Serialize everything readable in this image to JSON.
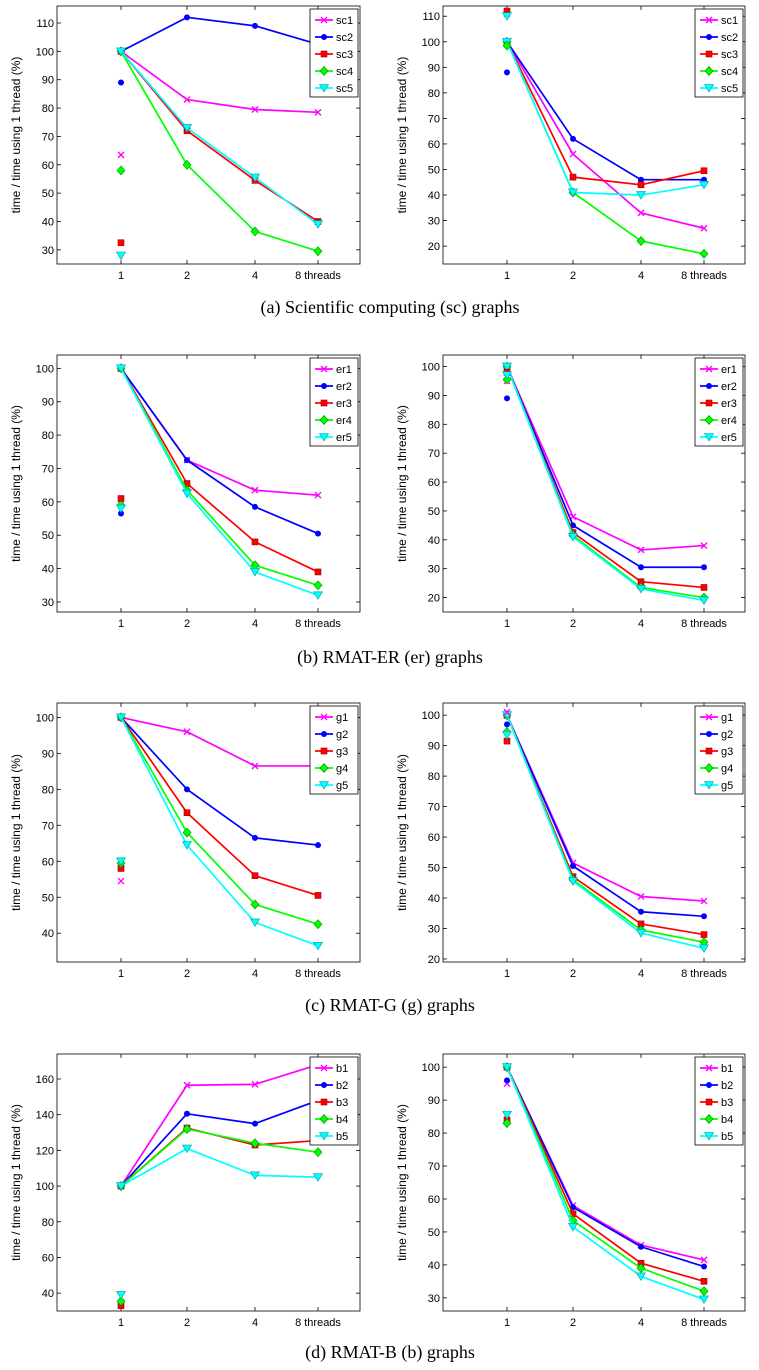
{
  "colors": {
    "pink": "#ff00ff",
    "blue": "#0000ff",
    "red": "#ff0000",
    "green": "#00ff00",
    "cyan": "#00ffff"
  },
  "series_styles": [
    {
      "color": "#ff00ff",
      "marker": "x"
    },
    {
      "color": "#0000ff",
      "marker": "dot"
    },
    {
      "color": "#ff0000",
      "marker": "square"
    },
    {
      "color": "#00ff00",
      "marker": "diamond"
    },
    {
      "color": "#00ffff",
      "marker": "triangle-down"
    }
  ],
  "captions": [
    "(a)  Scientific computing (sc) graphs",
    "(b)  RMAT-ER (er) graphs",
    "(c)  RMAT-G (g) graphs",
    "(d)  RMAT-B (b) graphs"
  ],
  "chart_data": [
    {
      "type": "line",
      "group": "a",
      "position": "left",
      "ylabel": "time / time using 1 thread (%)",
      "categories": [
        "1",
        "2",
        "4",
        "8 threads"
      ],
      "ylim": [
        25,
        116
      ],
      "yticks": [
        30,
        40,
        50,
        60,
        70,
        80,
        90,
        100,
        110
      ],
      "legend": "top-right",
      "grid": false,
      "series": [
        {
          "name": "sc1",
          "values": [
            100,
            83,
            79.5,
            78.5
          ]
        },
        {
          "name": "sc2",
          "values": [
            100,
            112,
            109,
            102.5
          ]
        },
        {
          "name": "sc3",
          "values": [
            100,
            72,
            54.5,
            40
          ]
        },
        {
          "name": "sc4",
          "values": [
            100,
            60,
            36.5,
            29.5
          ]
        },
        {
          "name": "sc5",
          "values": [
            100,
            73,
            55.5,
            39
          ]
        }
      ],
      "single_points": [
        {
          "series": "sc1",
          "x": "1",
          "y": 63.5
        },
        {
          "series": "sc2",
          "x": "1",
          "y": 89
        },
        {
          "series": "sc3",
          "x": "1",
          "y": 32.5
        },
        {
          "series": "sc4",
          "x": "1",
          "y": 58
        },
        {
          "series": "sc5",
          "x": "1",
          "y": 28
        }
      ]
    },
    {
      "type": "line",
      "group": "a",
      "position": "right",
      "ylabel": "time / time using 1 thread (%)",
      "categories": [
        "1",
        "2",
        "4",
        "8 threads"
      ],
      "ylim": [
        13,
        114
      ],
      "yticks": [
        20,
        30,
        40,
        50,
        60,
        70,
        80,
        90,
        100,
        110
      ],
      "legend": "top-right",
      "grid": false,
      "series": [
        {
          "name": "sc1",
          "values": [
            100,
            56,
            33,
            27
          ]
        },
        {
          "name": "sc2",
          "values": [
            100,
            62,
            46,
            46
          ]
        },
        {
          "name": "sc3",
          "values": [
            100,
            47,
            44,
            49.5
          ]
        },
        {
          "name": "sc4",
          "values": [
            100,
            41,
            22,
            17
          ]
        },
        {
          "name": "sc5",
          "values": [
            100,
            41,
            40,
            44
          ]
        }
      ],
      "single_points": [
        {
          "series": "sc1",
          "x": "1",
          "y": 111
        },
        {
          "series": "sc2",
          "x": "1",
          "y": 88
        },
        {
          "series": "sc3",
          "x": "1",
          "y": 112
        },
        {
          "series": "sc4",
          "x": "1",
          "y": 98.5
        },
        {
          "series": "sc5",
          "x": "1",
          "y": 110
        }
      ]
    },
    {
      "type": "line",
      "group": "b",
      "position": "left",
      "ylabel": "time / time using 1 thread (%)",
      "categories": [
        "1",
        "2",
        "4",
        "8 threads"
      ],
      "ylim": [
        27,
        104
      ],
      "yticks": [
        30,
        40,
        50,
        60,
        70,
        80,
        90,
        100
      ],
      "legend": "top-right",
      "grid": false,
      "series": [
        {
          "name": "er1",
          "values": [
            100,
            72.5,
            63.5,
            62
          ]
        },
        {
          "name": "er2",
          "values": [
            100,
            72.5,
            58.5,
            50.5
          ]
        },
        {
          "name": "er3",
          "values": [
            100,
            65.5,
            48,
            39
          ]
        },
        {
          "name": "er4",
          "values": [
            100,
            63.5,
            41,
            35
          ]
        },
        {
          "name": "er5",
          "values": [
            100,
            62.5,
            39,
            32
          ]
        }
      ],
      "single_points": [
        {
          "series": "er1",
          "x": "1",
          "y": 59.5
        },
        {
          "series": "er2",
          "x": "1",
          "y": 56.5
        },
        {
          "series": "er3",
          "x": "1",
          "y": 61
        },
        {
          "series": "er4",
          "x": "1",
          "y": 59
        },
        {
          "series": "er5",
          "x": "1",
          "y": 58
        }
      ]
    },
    {
      "type": "line",
      "group": "b",
      "position": "right",
      "ylabel": "time / time using 1 thread (%)",
      "categories": [
        "1",
        "2",
        "4",
        "8 threads"
      ],
      "ylim": [
        15,
        104
      ],
      "yticks": [
        20,
        30,
        40,
        50,
        60,
        70,
        80,
        90,
        100
      ],
      "legend": "top-right",
      "grid": false,
      "series": [
        {
          "name": "er1",
          "values": [
            100,
            48,
            36.5,
            38
          ]
        },
        {
          "name": "er2",
          "values": [
            100,
            45,
            30.5,
            30.5
          ]
        },
        {
          "name": "er3",
          "values": [
            100,
            42.5,
            25.5,
            23.5
          ]
        },
        {
          "name": "er4",
          "values": [
            100,
            41.5,
            23.5,
            20
          ]
        },
        {
          "name": "er5",
          "values": [
            100,
            41,
            23,
            19
          ]
        }
      ],
      "single_points": [
        {
          "series": "er1",
          "x": "1",
          "y": 95
        },
        {
          "series": "er2",
          "x": "1",
          "y": 89
        },
        {
          "series": "er3",
          "x": "1",
          "y": 98
        },
        {
          "series": "er4",
          "x": "1",
          "y": 95.5
        },
        {
          "series": "er5",
          "x": "1",
          "y": 97
        }
      ]
    },
    {
      "type": "line",
      "group": "c",
      "position": "left",
      "ylabel": "time / time using 1 thread (%)",
      "categories": [
        "1",
        "2",
        "4",
        "8 threads"
      ],
      "ylim": [
        32,
        104
      ],
      "yticks": [
        40,
        50,
        60,
        70,
        80,
        90,
        100
      ],
      "legend": "top-right",
      "grid": false,
      "series": [
        {
          "name": "g1",
          "values": [
            100,
            96,
            86.5,
            86.5
          ]
        },
        {
          "name": "g2",
          "values": [
            100,
            80,
            66.5,
            64.5
          ]
        },
        {
          "name": "g3",
          "values": [
            100,
            73.5,
            56,
            50.5
          ]
        },
        {
          "name": "g4",
          "values": [
            100,
            68,
            48,
            42.5
          ]
        },
        {
          "name": "g5",
          "values": [
            100,
            64.5,
            43,
            36.5
          ]
        }
      ],
      "single_points": [
        {
          "series": "g1",
          "x": "1",
          "y": 54.5
        },
        {
          "series": "g2",
          "x": "1",
          "y": 59
        },
        {
          "series": "g3",
          "x": "1",
          "y": 58
        },
        {
          "series": "g4",
          "x": "1",
          "y": 59.5
        },
        {
          "series": "g5",
          "x": "1",
          "y": 60
        }
      ]
    },
    {
      "type": "line",
      "group": "c",
      "position": "right",
      "ylabel": "time / time using 1 thread (%)",
      "categories": [
        "1",
        "2",
        "4",
        "8 threads"
      ],
      "ylim": [
        19,
        104
      ],
      "yticks": [
        20,
        30,
        40,
        50,
        60,
        70,
        80,
        90,
        100
      ],
      "legend": "top-right",
      "grid": false,
      "series": [
        {
          "name": "g1",
          "values": [
            100,
            51.5,
            40.5,
            39
          ]
        },
        {
          "name": "g2",
          "values": [
            100,
            50.5,
            35.5,
            34
          ]
        },
        {
          "name": "g3",
          "values": [
            100,
            47,
            31.5,
            28
          ]
        },
        {
          "name": "g4",
          "values": [
            100,
            46,
            29.5,
            25.5
          ]
        },
        {
          "name": "g5",
          "values": [
            100,
            45.5,
            28.5,
            23.5
          ]
        }
      ],
      "single_points": [
        {
          "series": "g1",
          "x": "1",
          "y": 101
        },
        {
          "series": "g2",
          "x": "1",
          "y": 97
        },
        {
          "series": "g3",
          "x": "1",
          "y": 91.5
        },
        {
          "series": "g4",
          "x": "1",
          "y": 94.5
        },
        {
          "series": "g5",
          "x": "1",
          "y": 93.5
        }
      ]
    },
    {
      "type": "line",
      "group": "d",
      "position": "left",
      "ylabel": "time / time using 1 thread (%)",
      "categories": [
        "1",
        "2",
        "4",
        "8 threads"
      ],
      "ylim": [
        30,
        174
      ],
      "yticks": [
        40,
        60,
        80,
        100,
        120,
        140,
        160
      ],
      "legend": "top-right",
      "grid": false,
      "series": [
        {
          "name": "b1",
          "values": [
            100,
            156.5,
            157,
            168
          ]
        },
        {
          "name": "b2",
          "values": [
            100,
            140.5,
            135,
            148
          ]
        },
        {
          "name": "b3",
          "values": [
            100,
            132.5,
            123,
            125.5
          ]
        },
        {
          "name": "b4",
          "values": [
            100,
            132,
            124,
            119
          ]
        },
        {
          "name": "b5",
          "values": [
            100,
            121,
            106,
            105
          ]
        }
      ],
      "single_points": [
        {
          "series": "b1",
          "x": "1",
          "y": 34
        },
        {
          "series": "b2",
          "x": "1",
          "y": 35
        },
        {
          "series": "b3",
          "x": "1",
          "y": 33
        },
        {
          "series": "b4",
          "x": "1",
          "y": 35.5
        },
        {
          "series": "b5",
          "x": "1",
          "y": 39
        }
      ]
    },
    {
      "type": "line",
      "group": "d",
      "position": "right",
      "ylabel": "time / time using 1 thread (%)",
      "categories": [
        "1",
        "2",
        "4",
        "8 threads"
      ],
      "ylim": [
        26,
        104
      ],
      "yticks": [
        30,
        40,
        50,
        60,
        70,
        80,
        90,
        100
      ],
      "legend": "top-right",
      "grid": false,
      "series": [
        {
          "name": "b1",
          "values": [
            100,
            58,
            46,
            41.5
          ]
        },
        {
          "name": "b2",
          "values": [
            100,
            57.5,
            45.5,
            39.5
          ]
        },
        {
          "name": "b3",
          "values": [
            100,
            55.5,
            40.5,
            35
          ]
        },
        {
          "name": "b4",
          "values": [
            100,
            53.5,
            39,
            32
          ]
        },
        {
          "name": "b5",
          "values": [
            100,
            51.5,
            36.5,
            29.5
          ]
        }
      ],
      "single_points": [
        {
          "series": "b1",
          "x": "1",
          "y": 95
        },
        {
          "series": "b2",
          "x": "1",
          "y": 96
        },
        {
          "series": "b3",
          "x": "1",
          "y": 84
        },
        {
          "series": "b4",
          "x": "1",
          "y": 83
        },
        {
          "series": "b5",
          "x": "1",
          "y": 85.5
        }
      ]
    }
  ]
}
